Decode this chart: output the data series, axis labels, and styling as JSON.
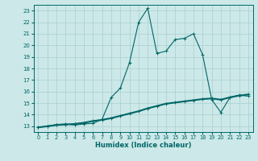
{
  "xlabel": "Humidex (Indice chaleur)",
  "ylabel": "",
  "background_color": "#cce8e8",
  "grid_color": "#aacfcf",
  "line_color": "#006666",
  "xlim": [
    -0.5,
    23.5
  ],
  "ylim": [
    12.5,
    23.5
  ],
  "yticks": [
    13,
    14,
    15,
    16,
    17,
    18,
    19,
    20,
    21,
    22,
    23
  ],
  "xticks": [
    0,
    1,
    2,
    3,
    4,
    5,
    6,
    7,
    8,
    9,
    10,
    11,
    12,
    13,
    14,
    15,
    16,
    17,
    18,
    19,
    20,
    21,
    22,
    23
  ],
  "line1_x": [
    0,
    1,
    2,
    3,
    4,
    5,
    6,
    7,
    8,
    9,
    10,
    11,
    12,
    13,
    14,
    15,
    16,
    17,
    18,
    19,
    20,
    21,
    22,
    23
  ],
  "line1_y": [
    12.9,
    13.0,
    13.15,
    13.2,
    13.1,
    13.2,
    13.25,
    13.6,
    15.5,
    16.3,
    18.5,
    22.0,
    23.2,
    19.3,
    19.5,
    20.5,
    20.6,
    21.0,
    19.2,
    15.3,
    14.2,
    15.5,
    15.7,
    15.6
  ],
  "line2_x": [
    0,
    1,
    2,
    3,
    4,
    5,
    6,
    7,
    8,
    9,
    10,
    11,
    12,
    13,
    14,
    15,
    16,
    17,
    18,
    19,
    20,
    21,
    22,
    23
  ],
  "line2_y": [
    12.9,
    13.0,
    13.1,
    13.15,
    13.2,
    13.3,
    13.45,
    13.55,
    13.7,
    13.9,
    14.1,
    14.3,
    14.55,
    14.75,
    14.95,
    15.05,
    15.15,
    15.25,
    15.35,
    15.4,
    15.3,
    15.5,
    15.65,
    15.75
  ]
}
